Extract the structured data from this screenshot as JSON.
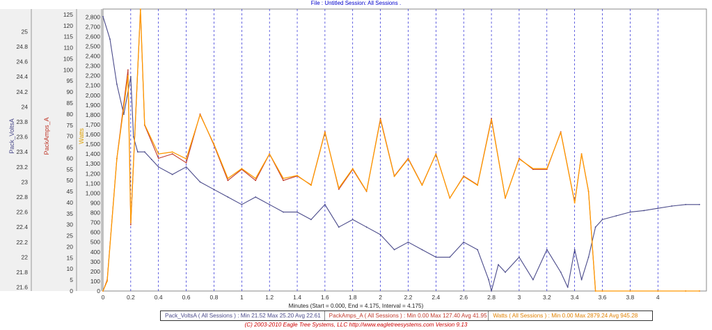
{
  "header": {
    "file_session": "File : Untitled   Session: All Sessions ."
  },
  "colors": {
    "volts": "#4a4a8a",
    "volts_light": "#b8b8d8",
    "amps": "#c0392b",
    "watts": "#ff9900",
    "watts_light": "#ffc070",
    "grid": "#0000cc"
  },
  "chart_data": {
    "type": "line",
    "title": "",
    "xlabel": "Minutes (Start = 0.000,  End = 4.175,  Interval =  4.175)",
    "xlim": [
      0,
      4.35
    ],
    "x_ticks": [
      "0",
      "0.2",
      "0.4",
      "0.6",
      "0.8",
      "1",
      "1.2",
      "1.4",
      "1.6",
      "1.8",
      "2",
      "2.2",
      "2.4",
      "2.6",
      "2.8",
      "3",
      "3.2",
      "3.4",
      "3.6",
      "3.8",
      "4"
    ],
    "axes": [
      {
        "name": "Pack_VoltsA",
        "ylim": [
          21.55,
          25.3
        ],
        "ticks": [
          "21.6",
          "21.8",
          "22",
          "22.2",
          "22.4",
          "22.6",
          "22.8",
          "23",
          "23.2",
          "23.4",
          "23.6",
          "23.8",
          "24",
          "24.2",
          "24.4",
          "24.6",
          "24.8",
          "25"
        ]
      },
      {
        "name": "PackAmps_A",
        "ylim": [
          0,
          127.5
        ],
        "ticks": [
          "0",
          "5",
          "10",
          "15",
          "20",
          "25",
          "30",
          "35",
          "40",
          "45",
          "50",
          "55",
          "60",
          "65",
          "70",
          "75",
          "80",
          "85",
          "90",
          "95",
          "100",
          "105",
          "110",
          "115",
          "120",
          "125"
        ]
      },
      {
        "name": "Watts",
        "ylim": [
          0,
          2880
        ],
        "ticks": [
          "0",
          "100",
          "200",
          "300",
          "400",
          "500",
          "600",
          "700",
          "800",
          "900",
          "1,000",
          "1,100",
          "1,200",
          "1,300",
          "1,400",
          "1,500",
          "1,600",
          "1,700",
          "1,800",
          "1,900",
          "2,000",
          "2,100",
          "2,200",
          "2,300",
          "2,400",
          "2,500",
          "2,600",
          "2,700",
          "2,800"
        ]
      }
    ],
    "series": [
      {
        "name": "Pack_VoltsA",
        "axis": 0,
        "x": [
          0,
          0.05,
          0.1,
          0.15,
          0.2,
          0.22,
          0.25,
          0.3,
          0.35,
          0.4,
          0.5,
          0.6,
          0.7,
          0.8,
          0.9,
          1.0,
          1.1,
          1.2,
          1.3,
          1.4,
          1.5,
          1.6,
          1.7,
          1.8,
          1.9,
          2.0,
          2.1,
          2.2,
          2.3,
          2.4,
          2.5,
          2.6,
          2.7,
          2.78,
          2.8,
          2.85,
          2.9,
          3.0,
          3.1,
          3.2,
          3.3,
          3.35,
          3.4,
          3.45,
          3.5,
          3.55,
          3.6,
          3.7,
          3.8,
          3.9,
          4.0,
          4.1,
          4.2,
          4.3
        ],
        "y": [
          25.2,
          24.9,
          24.3,
          23.9,
          24.4,
          23.6,
          23.4,
          23.4,
          23.3,
          23.2,
          23.1,
          23.2,
          23.0,
          22.9,
          22.8,
          22.7,
          22.8,
          22.7,
          22.6,
          22.6,
          22.5,
          22.7,
          22.4,
          22.5,
          22.4,
          22.3,
          22.1,
          22.2,
          22.1,
          22.0,
          22.0,
          22.2,
          22.1,
          21.7,
          21.55,
          21.9,
          21.8,
          22.0,
          21.7,
          22.1,
          21.8,
          21.6,
          22.1,
          21.7,
          22.0,
          22.4,
          22.5,
          22.55,
          22.6,
          22.62,
          22.65,
          22.68,
          22.7,
          22.7
        ]
      },
      {
        "name": "PackAmps_A",
        "axis": 1,
        "x": [
          0,
          0.03,
          0.1,
          0.18,
          0.2,
          0.27,
          0.3,
          0.4,
          0.5,
          0.6,
          0.7,
          0.8,
          0.9,
          1.0,
          1.1,
          1.2,
          1.3,
          1.4,
          1.5,
          1.6,
          1.7,
          1.8,
          1.9,
          2.0,
          2.1,
          2.2,
          2.3,
          2.4,
          2.5,
          2.6,
          2.7,
          2.8,
          2.9,
          3.0,
          3.1,
          3.2,
          3.3,
          3.4,
          3.45,
          3.5,
          3.55,
          3.6,
          3.8,
          4.0,
          4.2,
          4.3
        ],
        "y": [
          0,
          5,
          60,
          100,
          30,
          127,
          75,
          60,
          62,
          58,
          80,
          66,
          50,
          55,
          50,
          62,
          50,
          52,
          48,
          72,
          46,
          55,
          45,
          78,
          52,
          60,
          48,
          62,
          42,
          52,
          48,
          78,
          42,
          60,
          55,
          55,
          72,
          40,
          62,
          45,
          0,
          0,
          0,
          0,
          0,
          0
        ]
      },
      {
        "name": "Watts",
        "axis": 2,
        "x": [
          0,
          0.03,
          0.1,
          0.18,
          0.2,
          0.27,
          0.3,
          0.4,
          0.5,
          0.6,
          0.7,
          0.8,
          0.9,
          1.0,
          1.1,
          1.2,
          1.3,
          1.4,
          1.5,
          1.6,
          1.7,
          1.8,
          1.9,
          2.0,
          2.1,
          2.2,
          2.3,
          2.4,
          2.5,
          2.6,
          2.7,
          2.8,
          2.9,
          3.0,
          3.1,
          3.2,
          3.3,
          3.4,
          3.45,
          3.5,
          3.55,
          3.6,
          3.8,
          4.0,
          4.2,
          4.3
        ],
        "y": [
          0,
          100,
          1350,
          2200,
          700,
          2879,
          1700,
          1400,
          1420,
          1350,
          1800,
          1500,
          1150,
          1250,
          1150,
          1400,
          1150,
          1180,
          1080,
          1620,
          1050,
          1250,
          1020,
          1750,
          1170,
          1350,
          1080,
          1400,
          950,
          1170,
          1080,
          1750,
          950,
          1350,
          1250,
          1250,
          1620,
          900,
          1400,
          1020,
          0,
          0,
          0,
          0,
          0,
          0
        ]
      }
    ]
  },
  "legend": [
    {
      "text": "Pack_VoltsA ( All Sessions ) : Min 21.52   Max 25.20   Avg 22.61",
      "color": "#4a4a8a"
    },
    {
      "text": "PackAmps_A ( All Sessions ) : Min 0.00   Max 127.40   Avg 41.95",
      "color": "#c0392b"
    },
    {
      "text": "Watts ( All Sessions ) : Min 0.00   Max 2879.24   Avg 945.28",
      "color": "#e08000"
    }
  ],
  "footer": "(C) 2003-2010 Eagle Tree Systems, LLC    http://www.eagletreesystems.com    Version 9.13"
}
